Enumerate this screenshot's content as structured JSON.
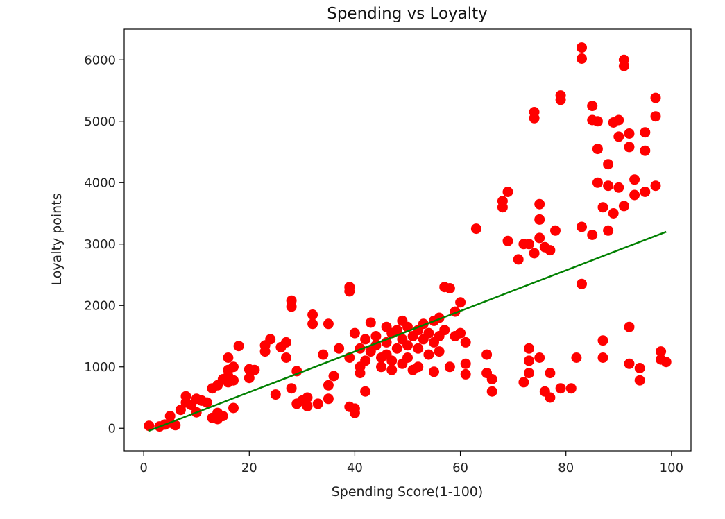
{
  "chart_data": {
    "type": "scatter",
    "title": "Spending vs Loyalty",
    "xlabel": "Spending Score(1-100)",
    "ylabel": "Loyalty points",
    "xlim": [
      -3.7,
      103.7
    ],
    "ylim": [
      -370,
      6500
    ],
    "x_ticks": [
      0,
      20,
      40,
      60,
      80,
      100
    ],
    "y_ticks": [
      0,
      1000,
      2000,
      3000,
      4000,
      5000,
      6000
    ],
    "grid": false,
    "legend": "none",
    "colors": {
      "points": "#ff0000",
      "fit_line": "#008000",
      "axes": "#000000"
    },
    "fit_line": {
      "x": [
        1,
        99
      ],
      "y": [
        -40,
        3200
      ]
    },
    "points": [
      [
        1,
        40
      ],
      [
        3,
        30
      ],
      [
        4,
        60
      ],
      [
        5,
        200
      ],
      [
        5,
        90
      ],
      [
        6,
        50
      ],
      [
        7,
        300
      ],
      [
        8,
        520
      ],
      [
        8,
        420
      ],
      [
        9,
        380
      ],
      [
        10,
        480
      ],
      [
        10,
        260
      ],
      [
        11,
        450
      ],
      [
        12,
        420
      ],
      [
        13,
        650
      ],
      [
        13,
        170
      ],
      [
        14,
        700
      ],
      [
        14,
        250
      ],
      [
        14,
        150
      ],
      [
        15,
        800
      ],
      [
        15,
        200
      ],
      [
        16,
        1150
      ],
      [
        16,
        950
      ],
      [
        16,
        850
      ],
      [
        16,
        750
      ],
      [
        17,
        1000
      ],
      [
        17,
        780
      ],
      [
        17,
        330
      ],
      [
        18,
        1340
      ],
      [
        20,
        960
      ],
      [
        20,
        820
      ],
      [
        21,
        950
      ],
      [
        23,
        1250
      ],
      [
        23,
        1350
      ],
      [
        24,
        1450
      ],
      [
        25,
        550
      ],
      [
        26,
        1320
      ],
      [
        27,
        1400
      ],
      [
        27,
        1150
      ],
      [
        28,
        2080
      ],
      [
        28,
        1980
      ],
      [
        28,
        650
      ],
      [
        29,
        400
      ],
      [
        29,
        930
      ],
      [
        30,
        450
      ],
      [
        31,
        360
      ],
      [
        31,
        500
      ],
      [
        32,
        1850
      ],
      [
        32,
        1700
      ],
      [
        33,
        400
      ],
      [
        34,
        1200
      ],
      [
        35,
        1700
      ],
      [
        35,
        700
      ],
      [
        35,
        480
      ],
      [
        36,
        850
      ],
      [
        37,
        1300
      ],
      [
        39,
        2300
      ],
      [
        39,
        2230
      ],
      [
        39,
        1150
      ],
      [
        39,
        350
      ],
      [
        40,
        320
      ],
      [
        40,
        250
      ],
      [
        40,
        1550
      ],
      [
        41,
        1300
      ],
      [
        41,
        1000
      ],
      [
        41,
        900
      ],
      [
        42,
        1450
      ],
      [
        42,
        1100
      ],
      [
        42,
        600
      ],
      [
        43,
        1250
      ],
      [
        43,
        1720
      ],
      [
        44,
        1350
      ],
      [
        44,
        1500
      ],
      [
        45,
        1150
      ],
      [
        45,
        1000
      ],
      [
        46,
        1650
      ],
      [
        46,
        1400
      ],
      [
        46,
        1200
      ],
      [
        47,
        1550
      ],
      [
        47,
        1100
      ],
      [
        47,
        950
      ],
      [
        48,
        1600
      ],
      [
        48,
        1300
      ],
      [
        49,
        1450
      ],
      [
        49,
        1750
      ],
      [
        49,
        1050
      ],
      [
        50,
        1650
      ],
      [
        50,
        1350
      ],
      [
        50,
        1150
      ],
      [
        51,
        1500
      ],
      [
        51,
        950
      ],
      [
        52,
        1600
      ],
      [
        52,
        1300
      ],
      [
        52,
        1000
      ],
      [
        53,
        1700
      ],
      [
        53,
        1450
      ],
      [
        54,
        1200
      ],
      [
        54,
        1550
      ],
      [
        55,
        1750
      ],
      [
        55,
        1400
      ],
      [
        55,
        920
      ],
      [
        56,
        1800
      ],
      [
        56,
        1500
      ],
      [
        56,
        1250
      ],
      [
        57,
        2300
      ],
      [
        57,
        1600
      ],
      [
        58,
        2280
      ],
      [
        58,
        1000
      ],
      [
        59,
        1500
      ],
      [
        59,
        1900
      ],
      [
        60,
        2050
      ],
      [
        60,
        1550
      ],
      [
        61,
        1400
      ],
      [
        61,
        1050
      ],
      [
        61,
        880
      ],
      [
        63,
        3250
      ],
      [
        65,
        1200
      ],
      [
        65,
        900
      ],
      [
        66,
        800
      ],
      [
        66,
        600
      ],
      [
        68,
        3700
      ],
      [
        68,
        3600
      ],
      [
        69,
        3850
      ],
      [
        69,
        3050
      ],
      [
        71,
        2750
      ],
      [
        72,
        3000
      ],
      [
        72,
        750
      ],
      [
        73,
        3000
      ],
      [
        73,
        1300
      ],
      [
        73,
        1100
      ],
      [
        73,
        900
      ],
      [
        74,
        5150
      ],
      [
        74,
        5050
      ],
      [
        74,
        2850
      ],
      [
        75,
        3650
      ],
      [
        75,
        3400
      ],
      [
        75,
        3100
      ],
      [
        75,
        1150
      ],
      [
        76,
        2950
      ],
      [
        76,
        600
      ],
      [
        77,
        2900
      ],
      [
        77,
        900
      ],
      [
        77,
        500
      ],
      [
        78,
        3220
      ],
      [
        79,
        5420
      ],
      [
        79,
        5350
      ],
      [
        79,
        650
      ],
      [
        81,
        650
      ],
      [
        82,
        1150
      ],
      [
        83,
        6200
      ],
      [
        83,
        6020
      ],
      [
        83,
        3280
      ],
      [
        83,
        2350
      ],
      [
        85,
        5250
      ],
      [
        85,
        5020
      ],
      [
        85,
        3150
      ],
      [
        86,
        4550
      ],
      [
        86,
        4000
      ],
      [
        86,
        5000
      ],
      [
        87,
        3600
      ],
      [
        87,
        1430
      ],
      [
        87,
        1150
      ],
      [
        88,
        4300
      ],
      [
        88,
        3950
      ],
      [
        88,
        3220
      ],
      [
        89,
        3500
      ],
      [
        89,
        4980
      ],
      [
        90,
        5020
      ],
      [
        90,
        4750
      ],
      [
        90,
        3920
      ],
      [
        91,
        6000
      ],
      [
        91,
        5900
      ],
      [
        91,
        3620
      ],
      [
        92,
        4800
      ],
      [
        92,
        4580
      ],
      [
        92,
        1650
      ],
      [
        92,
        1050
      ],
      [
        93,
        4050
      ],
      [
        93,
        3800
      ],
      [
        94,
        980
      ],
      [
        94,
        780
      ],
      [
        95,
        4820
      ],
      [
        95,
        4520
      ],
      [
        95,
        3850
      ],
      [
        97,
        5380
      ],
      [
        97,
        5080
      ],
      [
        97,
        3950
      ],
      [
        98,
        1250
      ],
      [
        98,
        1120
      ],
      [
        99,
        1080
      ]
    ]
  }
}
